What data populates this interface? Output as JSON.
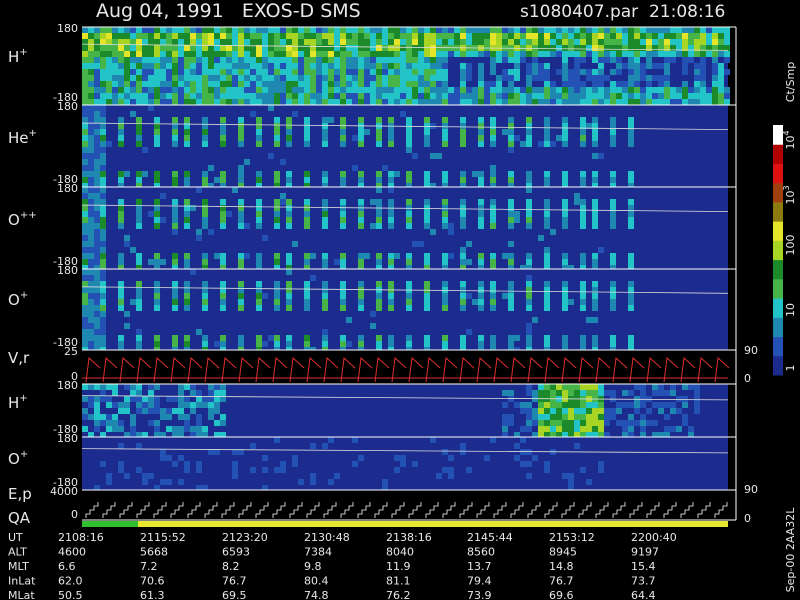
{
  "header": {
    "title": "Aug 04, 1991   EXOS-D SMS",
    "file": "s1080407.par  21:08:16"
  },
  "panels": [
    {
      "label": "H",
      "sup": "+",
      "ticks": [
        "180",
        "-180"
      ]
    },
    {
      "label": "He",
      "sup": "+",
      "ticks": [
        "180",
        "-180"
      ]
    },
    {
      "label": "O",
      "sup": "++",
      "ticks": [
        "180",
        "-180"
      ]
    },
    {
      "label": "O",
      "sup": "+",
      "ticks": [
        "180",
        "-180"
      ]
    },
    {
      "label": "V,r",
      "ticks": [
        "25",
        "0"
      ],
      "right_ticks": [
        "90",
        "0"
      ]
    },
    {
      "label": "H",
      "sup": "+",
      "ticks": [
        "180",
        "-180"
      ]
    },
    {
      "label": "O",
      "sup": "+",
      "ticks": [
        "180",
        "-180"
      ],
      "right_ticks": [
        "90"
      ]
    },
    {
      "label": "E,p",
      "label2": "QA",
      "ticks": [
        "4000",
        "0"
      ],
      "right_ticks": [
        "0"
      ]
    }
  ],
  "colorbar": {
    "unit": "Ct/Smp",
    "labels": [
      {
        "base": "10",
        "sup": "4"
      },
      {
        "base": "10",
        "sup": "3"
      },
      {
        "base": "100"
      },
      {
        "base": "10"
      },
      {
        "base": "1"
      }
    ]
  },
  "footer": "Sep-00 2AA32L",
  "table": {
    "rows": [
      {
        "name": "UT",
        "values": [
          "2108:16",
          "2115:52",
          "2123:20",
          "2130:48",
          "2138:16",
          "2145:44",
          "2153:12",
          "2200:40"
        ]
      },
      {
        "name": "ALT",
        "values": [
          "4600",
          "5668",
          "6593",
          "7384",
          "8040",
          "8560",
          "8945",
          "9197"
        ]
      },
      {
        "name": "MLT",
        "values": [
          "6.6",
          "7.2",
          "8.2",
          "9.8",
          "11.9",
          "13.7",
          "14.8",
          "15.4"
        ]
      },
      {
        "name": "InLat",
        "values": [
          "62.0",
          "70.6",
          "76.7",
          "80.4",
          "81.1",
          "79.4",
          "76.7",
          "73.7"
        ]
      },
      {
        "name": "MLat",
        "values": [
          "50.5",
          "61.3",
          "69.5",
          "74.8",
          "76.2",
          "73.9",
          "69.6",
          "64.4"
        ]
      }
    ]
  }
}
